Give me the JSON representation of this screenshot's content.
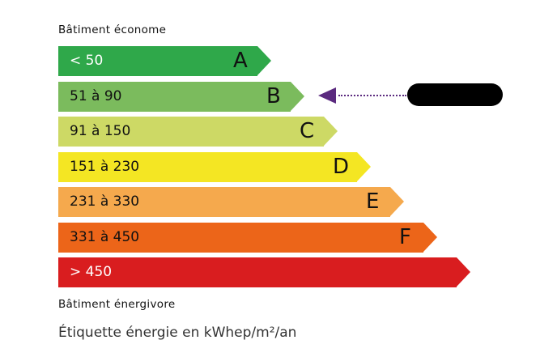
{
  "header": {
    "top_label": "Bâtiment économe",
    "bottom_label": "Bâtiment énergivore"
  },
  "classes": [
    {
      "letter": "A",
      "range": "< 50",
      "color": "#2fa84a",
      "text_color": "#ffffff"
    },
    {
      "letter": "B",
      "range": "51 à 90",
      "color": "#7bbb5d",
      "text_color": "#111111"
    },
    {
      "letter": "C",
      "range": "91 à 150",
      "color": "#cdd965",
      "text_color": "#111111"
    },
    {
      "letter": "D",
      "range": "151 à 230",
      "color": "#f4e623",
      "text_color": "#111111"
    },
    {
      "letter": "E",
      "range": "231 à 330",
      "color": "#f5a94d",
      "text_color": "#111111"
    },
    {
      "letter": "F",
      "range": "331 à 450",
      "color": "#ec6519",
      "text_color": "#111111"
    },
    {
      "letter": "",
      "range": "> 450",
      "color": "#d91d1f",
      "text_color": "#ffffff"
    }
  ],
  "indicator": {
    "class": "B",
    "color": "#5b2a7f",
    "value_redacted": true
  },
  "footer": {
    "unit_label": "Étiquette énergie en kWhep/m²/an"
  }
}
